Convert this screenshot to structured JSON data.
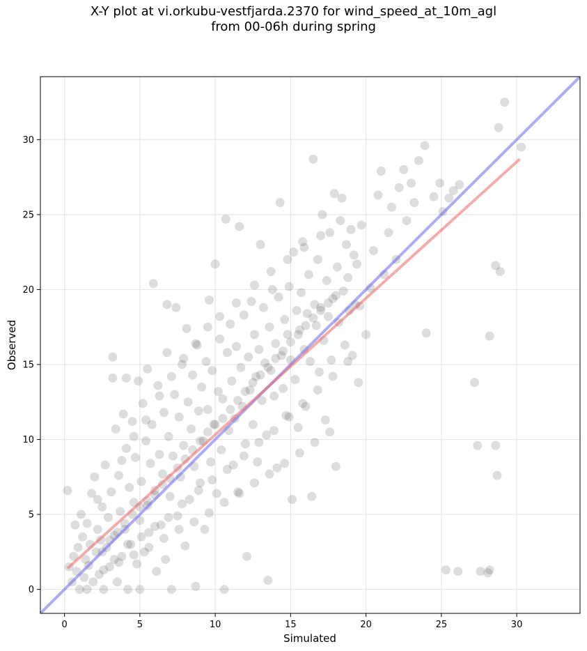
{
  "chart_data": {
    "type": "scatter",
    "title": "X-Y plot at vi.orkubu-vestfjarda.2370 for wind_speed_at_10m_agl",
    "subtitle": "from 00-06h during spring",
    "xlabel": "Simulated",
    "ylabel": "Observed",
    "xlim": [
      -1.6,
      34.2
    ],
    "ylim": [
      -1.6,
      34.2
    ],
    "xticks": [
      0,
      5,
      10,
      15,
      20,
      25,
      30
    ],
    "yticks": [
      0,
      5,
      10,
      15,
      20,
      25,
      30
    ],
    "grid": true,
    "point_color": "#555555",
    "reference_line": {
      "color": "#6666ee",
      "x": [
        -1.6,
        34.2
      ],
      "y": [
        -1.6,
        34.2
      ]
    },
    "fit_line": {
      "color": "#ee6666",
      "x": [
        0.2,
        30.2
      ],
      "y": [
        1.4,
        28.7
      ]
    },
    "points": [
      [
        0.2,
        6.6
      ],
      [
        0.3,
        1.5
      ],
      [
        0.5,
        0.5
      ],
      [
        0.6,
        2.2
      ],
      [
        0.7,
        4.3
      ],
      [
        0.8,
        1.2
      ],
      [
        0.9,
        2.8
      ],
      [
        1.0,
        0.0
      ],
      [
        1.1,
        5.0
      ],
      [
        1.2,
        3.5
      ],
      [
        1.3,
        0.8
      ],
      [
        1.4,
        2.0
      ],
      [
        1.5,
        4.4
      ],
      [
        1.6,
        1.6
      ],
      [
        1.7,
        3.0
      ],
      [
        1.8,
        6.4
      ],
      [
        1.9,
        0.5
      ],
      [
        2.0,
        7.5
      ],
      [
        2.1,
        2.5
      ],
      [
        2.2,
        4.0
      ],
      [
        2.3,
        1.0
      ],
      [
        2.4,
        3.3
      ],
      [
        2.5,
        5.5
      ],
      [
        2.6,
        0.0
      ],
      [
        2.7,
        8.3
      ],
      [
        2.8,
        2.8
      ],
      [
        2.9,
        4.8
      ],
      [
        3.0,
        1.5
      ],
      [
        3.1,
        6.5
      ],
      [
        3.2,
        15.5
      ],
      [
        3.2,
        14.1
      ],
      [
        3.3,
        3.6
      ],
      [
        3.4,
        10.7
      ],
      [
        3.5,
        0.5
      ],
      [
        3.6,
        7.6
      ],
      [
        3.7,
        5.2
      ],
      [
        3.8,
        2.2
      ],
      [
        3.9,
        11.7
      ],
      [
        4.0,
        4.4
      ],
      [
        4.1,
        9.4
      ],
      [
        4.1,
        14.1
      ],
      [
        4.2,
        0.0
      ],
      [
        4.3,
        6.8
      ],
      [
        4.4,
        3.0
      ],
      [
        4.5,
        11.2
      ],
      [
        4.6,
        5.8
      ],
      [
        4.7,
        8.8
      ],
      [
        4.8,
        1.7
      ],
      [
        4.9,
        13.9
      ],
      [
        5.0,
        4.6
      ],
      [
        5.0,
        0.0
      ],
      [
        5.1,
        7.2
      ],
      [
        5.2,
        12.4
      ],
      [
        5.3,
        2.5
      ],
      [
        5.4,
        9.9
      ],
      [
        5.5,
        5.9
      ],
      [
        5.5,
        14.7
      ],
      [
        5.6,
        3.8
      ],
      [
        5.7,
        8.4
      ],
      [
        5.8,
        11.0
      ],
      [
        5.9,
        20.4
      ],
      [
        6.0,
        6.6
      ],
      [
        6.1,
        1.2
      ],
      [
        6.2,
        13.6
      ],
      [
        6.3,
        9.0
      ],
      [
        6.4,
        4.3
      ],
      [
        6.5,
        7.7
      ],
      [
        6.6,
        11.8
      ],
      [
        6.7,
        2.0
      ],
      [
        6.8,
        19.0
      ],
      [
        6.8,
        15.8
      ],
      [
        6.9,
        10.2
      ],
      [
        7.0,
        6.2
      ],
      [
        7.1,
        0.0
      ],
      [
        7.2,
        8.9
      ],
      [
        7.3,
        13.0
      ],
      [
        7.4,
        18.8
      ],
      [
        7.5,
        4.9
      ],
      [
        7.6,
        11.5
      ],
      [
        7.7,
        7.5
      ],
      [
        7.8,
        15.0
      ],
      [
        7.9,
        9.6
      ],
      [
        8.0,
        2.9
      ],
      [
        8.1,
        17.4
      ],
      [
        8.2,
        12.5
      ],
      [
        8.3,
        6.0
      ],
      [
        8.4,
        10.7
      ],
      [
        8.5,
        14.3
      ],
      [
        8.6,
        8.2
      ],
      [
        8.7,
        0.2
      ],
      [
        8.8,
        16.3
      ],
      [
        8.9,
        11.9
      ],
      [
        9.0,
        7.1
      ],
      [
        9.1,
        13.5
      ],
      [
        9.2,
        9.9
      ],
      [
        9.3,
        4.0
      ],
      [
        9.4,
        15.2
      ],
      [
        9.5,
        12.0
      ],
      [
        9.6,
        19.3
      ],
      [
        9.7,
        8.5
      ],
      [
        9.8,
        14.6
      ],
      [
        9.9,
        11.0
      ],
      [
        10.0,
        21.7
      ],
      [
        10.1,
        6.4
      ],
      [
        10.2,
        13.2
      ],
      [
        10.3,
        16.7
      ],
      [
        10.4,
        9.3
      ],
      [
        10.5,
        12.7
      ],
      [
        10.6,
        0.0
      ],
      [
        10.7,
        24.7
      ],
      [
        10.8,
        15.8
      ],
      [
        10.9,
        10.6
      ],
      [
        11.0,
        17.7
      ],
      [
        11.1,
        13.9
      ],
      [
        11.2,
        8.3
      ],
      [
        11.3,
        11.4
      ],
      [
        11.4,
        16.2
      ],
      [
        11.5,
        6.5
      ],
      [
        11.6,
        24.2
      ],
      [
        11.7,
        14.8
      ],
      [
        11.8,
        12.2
      ],
      [
        11.9,
        18.3
      ],
      [
        12.0,
        9.7
      ],
      [
        12.1,
        2.2
      ],
      [
        12.2,
        15.5
      ],
      [
        12.3,
        13.3
      ],
      [
        12.4,
        19.2
      ],
      [
        12.5,
        11.0
      ],
      [
        12.6,
        17.0
      ],
      [
        12.7,
        14.2
      ],
      [
        12.8,
        8.5
      ],
      [
        12.9,
        16.0
      ],
      [
        13.0,
        23.0
      ],
      [
        13.1,
        12.6
      ],
      [
        13.2,
        18.8
      ],
      [
        13.3,
        15.1
      ],
      [
        13.4,
        10.3
      ],
      [
        13.5,
        0.6
      ],
      [
        13.6,
        17.5
      ],
      [
        13.7,
        14.6
      ],
      [
        13.8,
        20.0
      ],
      [
        13.9,
        12.9
      ],
      [
        14.0,
        16.4
      ],
      [
        14.1,
        8.1
      ],
      [
        14.2,
        19.5
      ],
      [
        14.3,
        25.8
      ],
      [
        14.4,
        15.6
      ],
      [
        14.5,
        13.4
      ],
      [
        14.6,
        18.0
      ],
      [
        14.7,
        11.6
      ],
      [
        14.8,
        17.0
      ],
      [
        14.9,
        20.2
      ],
      [
        15.0,
        15.3
      ],
      [
        15.1,
        6.0
      ],
      [
        15.2,
        22.5
      ],
      [
        15.3,
        14.0
      ],
      [
        15.4,
        18.6
      ],
      [
        15.5,
        10.8
      ],
      [
        15.6,
        17.3
      ],
      [
        15.7,
        19.8
      ],
      [
        15.8,
        23.2
      ],
      [
        15.9,
        16.0
      ],
      [
        16.0,
        12.2
      ],
      [
        16.1,
        18.4
      ],
      [
        16.2,
        21.0
      ],
      [
        16.3,
        15.2
      ],
      [
        16.4,
        6.2
      ],
      [
        16.5,
        28.7
      ],
      [
        16.6,
        19.0
      ],
      [
        16.7,
        17.6
      ],
      [
        16.8,
        22.0
      ],
      [
        16.9,
        14.5
      ],
      [
        17.0,
        18.8
      ],
      [
        17.1,
        25.0
      ],
      [
        17.2,
        16.6
      ],
      [
        17.3,
        11.3
      ],
      [
        17.4,
        20.6
      ],
      [
        17.5,
        18.2
      ],
      [
        17.6,
        23.8
      ],
      [
        17.7,
        15.3
      ],
      [
        17.8,
        19.4
      ],
      [
        17.9,
        26.4
      ],
      [
        18.0,
        8.2
      ],
      [
        18.1,
        21.5
      ],
      [
        18.2,
        17.8
      ],
      [
        18.3,
        24.6
      ],
      [
        18.4,
        26.1
      ],
      [
        18.5,
        19.9
      ],
      [
        18.6,
        16.3
      ],
      [
        18.7,
        23.0
      ],
      [
        18.8,
        20.8
      ],
      [
        18.9,
        18.6
      ],
      [
        19.0,
        24.0
      ],
      [
        19.1,
        15.6
      ],
      [
        19.2,
        22.3
      ],
      [
        19.3,
        19.0
      ],
      [
        19.4,
        21.7
      ],
      [
        19.5,
        13.8
      ],
      [
        19.6,
        18.9
      ],
      [
        19.7,
        24.3
      ],
      [
        20.0,
        17.0
      ],
      [
        20.3,
        20.1
      ],
      [
        20.5,
        22.6
      ],
      [
        20.8,
        26.3
      ],
      [
        21.0,
        27.9
      ],
      [
        21.2,
        21.0
      ],
      [
        21.5,
        23.8
      ],
      [
        21.7,
        25.5
      ],
      [
        22.0,
        22.0
      ],
      [
        22.2,
        26.8
      ],
      [
        22.5,
        28.0
      ],
      [
        22.7,
        24.6
      ],
      [
        23.0,
        27.1
      ],
      [
        23.2,
        25.8
      ],
      [
        23.5,
        28.6
      ],
      [
        23.9,
        29.6
      ],
      [
        24.0,
        17.1
      ],
      [
        24.5,
        26.2
      ],
      [
        24.9,
        27.1
      ],
      [
        25.1,
        25.2
      ],
      [
        25.3,
        1.3
      ],
      [
        25.5,
        26.1
      ],
      [
        25.8,
        26.6
      ],
      [
        26.1,
        1.2
      ],
      [
        26.2,
        27.0
      ],
      [
        27.2,
        13.8
      ],
      [
        27.4,
        9.6
      ],
      [
        27.6,
        1.2
      ],
      [
        28.1,
        1.1
      ],
      [
        28.2,
        1.3
      ],
      [
        28.2,
        16.9
      ],
      [
        28.6,
        9.6
      ],
      [
        28.6,
        21.6
      ],
      [
        28.7,
        7.6
      ],
      [
        28.8,
        30.8
      ],
      [
        28.9,
        21.2
      ],
      [
        29.2,
        32.5
      ],
      [
        30.3,
        29.5
      ],
      [
        2.5,
        2.5
      ],
      [
        3.0,
        3.3
      ],
      [
        3.5,
        3.8
      ],
      [
        4.0,
        4.0
      ],
      [
        4.5,
        5.0
      ],
      [
        5.0,
        5.5
      ],
      [
        5.5,
        5.6
      ],
      [
        6.0,
        6.3
      ],
      [
        6.5,
        7.0
      ],
      [
        7.0,
        7.4
      ],
      [
        7.5,
        8.1
      ],
      [
        8.0,
        8.7
      ],
      [
        8.5,
        9.3
      ],
      [
        9.0,
        9.9
      ],
      [
        9.5,
        10.5
      ],
      [
        10.0,
        11.0
      ],
      [
        10.5,
        11.4
      ],
      [
        11.0,
        12.0
      ],
      [
        11.5,
        12.6
      ],
      [
        12.0,
        13.2
      ],
      [
        12.5,
        13.8
      ],
      [
        13.0,
        14.3
      ],
      [
        13.5,
        14.8
      ],
      [
        14.0,
        15.4
      ],
      [
        14.5,
        15.9
      ],
      [
        15.0,
        16.5
      ],
      [
        15.5,
        17.0
      ],
      [
        16.0,
        17.6
      ],
      [
        16.5,
        18.1
      ],
      [
        17.0,
        18.6
      ],
      [
        17.5,
        19.1
      ],
      [
        18.0,
        19.6
      ],
      [
        2.2,
        6.0
      ],
      [
        3.8,
        8.6
      ],
      [
        4.6,
        10.2
      ],
      [
        5.4,
        11.3
      ],
      [
        6.3,
        12.9
      ],
      [
        7.1,
        14.2
      ],
      [
        7.9,
        15.4
      ],
      [
        8.7,
        16.4
      ],
      [
        9.5,
        17.5
      ],
      [
        10.3,
        18.2
      ],
      [
        11.4,
        19.1
      ],
      [
        12.6,
        20.3
      ],
      [
        13.7,
        21.2
      ],
      [
        14.8,
        22.0
      ],
      [
        15.9,
        22.8
      ],
      [
        17.0,
        23.6
      ],
      [
        1.5,
        0.0
      ],
      [
        2.6,
        1.3
      ],
      [
        3.6,
        1.8
      ],
      [
        4.6,
        2.3
      ],
      [
        5.6,
        2.8
      ],
      [
        6.6,
        3.4
      ],
      [
        7.6,
        4.0
      ],
      [
        8.6,
        4.5
      ],
      [
        9.6,
        5.1
      ],
      [
        10.6,
        5.8
      ],
      [
        11.6,
        6.4
      ],
      [
        12.6,
        7.1
      ],
      [
        13.6,
        7.7
      ],
      [
        14.6,
        8.4
      ],
      [
        15.6,
        9.1
      ],
      [
        16.6,
        9.8
      ],
      [
        17.6,
        10.5
      ],
      [
        3.3,
        2.0
      ],
      [
        4.2,
        3.0
      ],
      [
        5.1,
        3.5
      ],
      [
        6.0,
        4.2
      ],
      [
        6.9,
        4.8
      ],
      [
        7.8,
        5.7
      ],
      [
        8.9,
        6.6
      ],
      [
        9.8,
        7.3
      ],
      [
        10.8,
        8.0
      ],
      [
        11.9,
        8.9
      ],
      [
        12.9,
        9.8
      ],
      [
        13.9,
        10.6
      ],
      [
        14.9,
        11.5
      ],
      [
        15.8,
        12.4
      ],
      [
        16.8,
        13.3
      ],
      [
        17.8,
        14.2
      ],
      [
        18.8,
        15.2
      ]
    ]
  }
}
